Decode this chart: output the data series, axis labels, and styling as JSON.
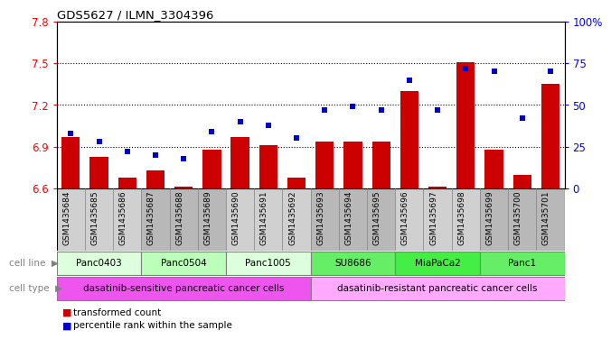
{
  "title": "GDS5627 / ILMN_3304396",
  "samples": [
    "GSM1435684",
    "GSM1435685",
    "GSM1435686",
    "GSM1435687",
    "GSM1435688",
    "GSM1435689",
    "GSM1435690",
    "GSM1435691",
    "GSM1435692",
    "GSM1435693",
    "GSM1435694",
    "GSM1435695",
    "GSM1435696",
    "GSM1435697",
    "GSM1435698",
    "GSM1435699",
    "GSM1435700",
    "GSM1435701"
  ],
  "bar_values": [
    6.97,
    6.83,
    6.68,
    6.73,
    6.61,
    6.88,
    6.97,
    6.91,
    6.68,
    6.94,
    6.94,
    6.94,
    7.3,
    6.61,
    7.51,
    6.88,
    6.7,
    7.35
  ],
  "dot_values": [
    33,
    28,
    22,
    20,
    18,
    34,
    40,
    38,
    30,
    47,
    49,
    47,
    65,
    47,
    72,
    70,
    42,
    70
  ],
  "ylim_left": [
    6.6,
    7.8
  ],
  "ylim_right": [
    0,
    100
  ],
  "yticks_left": [
    6.6,
    6.9,
    7.2,
    7.5,
    7.8
  ],
  "yticks_right": [
    0,
    25,
    50,
    75,
    100
  ],
  "ytick_labels_left": [
    "6.6",
    "6.9",
    "7.2",
    "7.5",
    "7.8"
  ],
  "ytick_labels_right": [
    "0",
    "25",
    "50",
    "75",
    "100%"
  ],
  "bar_color": "#cc0000",
  "dot_color": "#0000cc",
  "bar_baseline": 6.6,
  "sample_bg_colors": [
    "#d8d8d8",
    "#d8d8d8",
    "#d8d8d8",
    "#c8c8c8",
    "#c8c8c8",
    "#c8c8c8",
    "#d8d8d8",
    "#d8d8d8",
    "#d8d8d8",
    "#c8c8c8",
    "#c8c8c8",
    "#c8c8c8",
    "#d8d8d8",
    "#d8d8d8",
    "#d8d8d8",
    "#c8c8c8",
    "#c8c8c8",
    "#c8c8c8"
  ],
  "cell_lines": [
    {
      "label": "Panc0403",
      "start": 0,
      "end": 2,
      "color": "#ddffdd"
    },
    {
      "label": "Panc0504",
      "start": 3,
      "end": 5,
      "color": "#bbffbb"
    },
    {
      "label": "Panc1005",
      "start": 6,
      "end": 8,
      "color": "#ddffdd"
    },
    {
      "label": "SU8686",
      "start": 9,
      "end": 11,
      "color": "#66ee66"
    },
    {
      "label": "MiaPaCa2",
      "start": 12,
      "end": 14,
      "color": "#44ee44"
    },
    {
      "label": "Panc1",
      "start": 15,
      "end": 17,
      "color": "#66ee66"
    }
  ],
  "cell_types": [
    {
      "label": "dasatinib-sensitive pancreatic cancer cells",
      "start": 0,
      "end": 8,
      "color": "#ee55ee"
    },
    {
      "label": "dasatinib-resistant pancreatic cancer cells",
      "start": 9,
      "end": 17,
      "color": "#ffaaff"
    }
  ],
  "grid_yticks": [
    6.9,
    7.2,
    7.5
  ],
  "bg_color": "#ffffff"
}
